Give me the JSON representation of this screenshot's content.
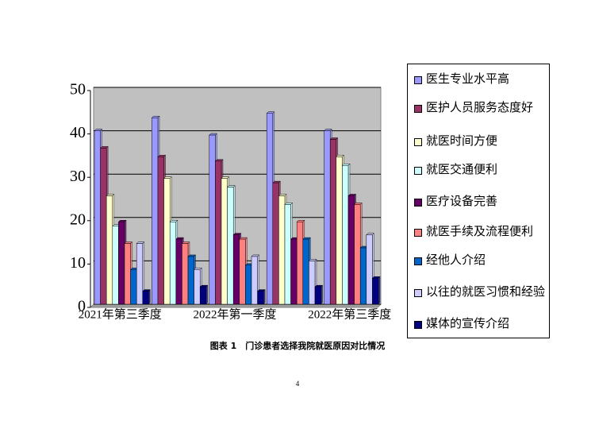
{
  "chart_data": {
    "type": "bar",
    "categories": [
      "2021年第三季度",
      null,
      "2022年第一季度",
      null,
      "2022年第三季度"
    ],
    "series": [
      {
        "name": "医生专业水平高",
        "color": "#9999ff",
        "values": [
          40,
          43,
          39,
          44,
          40
        ]
      },
      {
        "name": "医护人员服务态度好",
        "color": "#993366",
        "values": [
          36,
          34,
          33,
          28,
          38
        ]
      },
      {
        "name": "就医时间方便",
        "color": "#ffffcc",
        "values": [
          25,
          29,
          29,
          25,
          34
        ]
      },
      {
        "name": "就医交通便利",
        "color": "#ccffff",
        "values": [
          18,
          19,
          27,
          23,
          32
        ]
      },
      {
        "name": "医疗设备完善",
        "color": "#660066",
        "values": [
          19,
          15,
          16,
          15,
          25
        ]
      },
      {
        "name": "就医手续及流程便利",
        "color": "#ff8080",
        "values": [
          14,
          14,
          15,
          19,
          23
        ]
      },
      {
        "name": "经他人介绍",
        "color": "#0066cc",
        "values": [
          8,
          11,
          9,
          15,
          13
        ]
      },
      {
        "name": "以往的就医习惯和经验",
        "color": "#ccccff",
        "values": [
          14,
          8,
          11,
          10,
          16
        ]
      },
      {
        "name": "媒体的宣传介绍",
        "color": "#000080",
        "values": [
          3,
          4,
          3,
          4,
          6
        ]
      }
    ],
    "ylim": [
      0,
      50
    ],
    "yticks": [
      0,
      10,
      20,
      30,
      40,
      50
    ],
    "grid": true,
    "legend": "right"
  },
  "caption": "图表 1　门诊患者选择我院就医原因对比情况",
  "page_number": "4"
}
